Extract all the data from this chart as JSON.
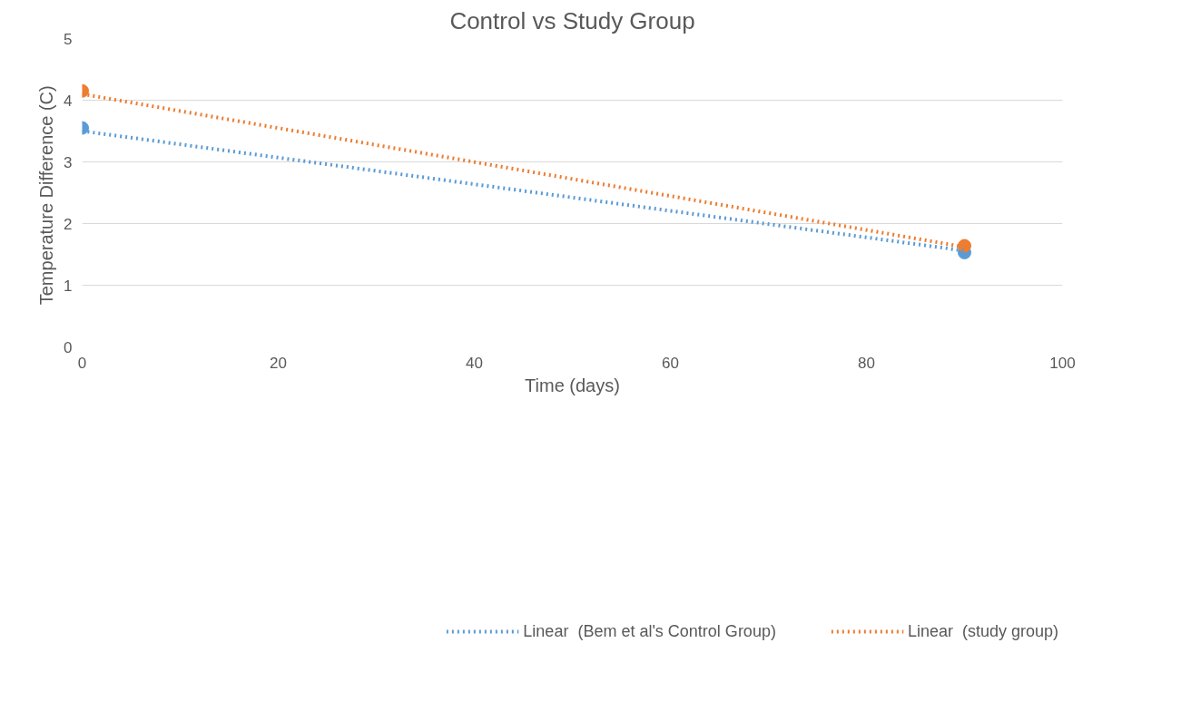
{
  "chart_data": {
    "type": "scatter",
    "title": "Control vs Study Group",
    "xlabel": "Time (days)",
    "ylabel": "Temperature  Difference (C)",
    "xlim": [
      0,
      100
    ],
    "xticks": [
      0,
      20,
      40,
      60,
      80,
      100
    ],
    "ylim": [
      0,
      5
    ],
    "yticks": [
      0,
      1,
      2,
      3,
      4,
      5
    ],
    "grid": "y",
    "legend": "bottom",
    "marker": "circle",
    "x": [
      0,
      90
    ],
    "series": [
      {
        "color": "#5b9bd5",
        "values": [
          3.55,
          1.53
        ]
      },
      {
        "color": "#ed7d31",
        "values": [
          4.15,
          1.64
        ]
      },
      {
        "type": "line",
        "name": "Linear  (Bem et al's Control Group)",
        "color": "#5b9bd5",
        "marker": "none",
        "line_style": "dotted",
        "values": [
          3.5,
          1.56
        ]
      },
      {
        "type": "line",
        "name": "Linear  (study group)",
        "color": "#ed7d31",
        "marker": "none",
        "line_style": "dotted",
        "values": [
          4.1,
          1.62
        ]
      }
    ]
  }
}
